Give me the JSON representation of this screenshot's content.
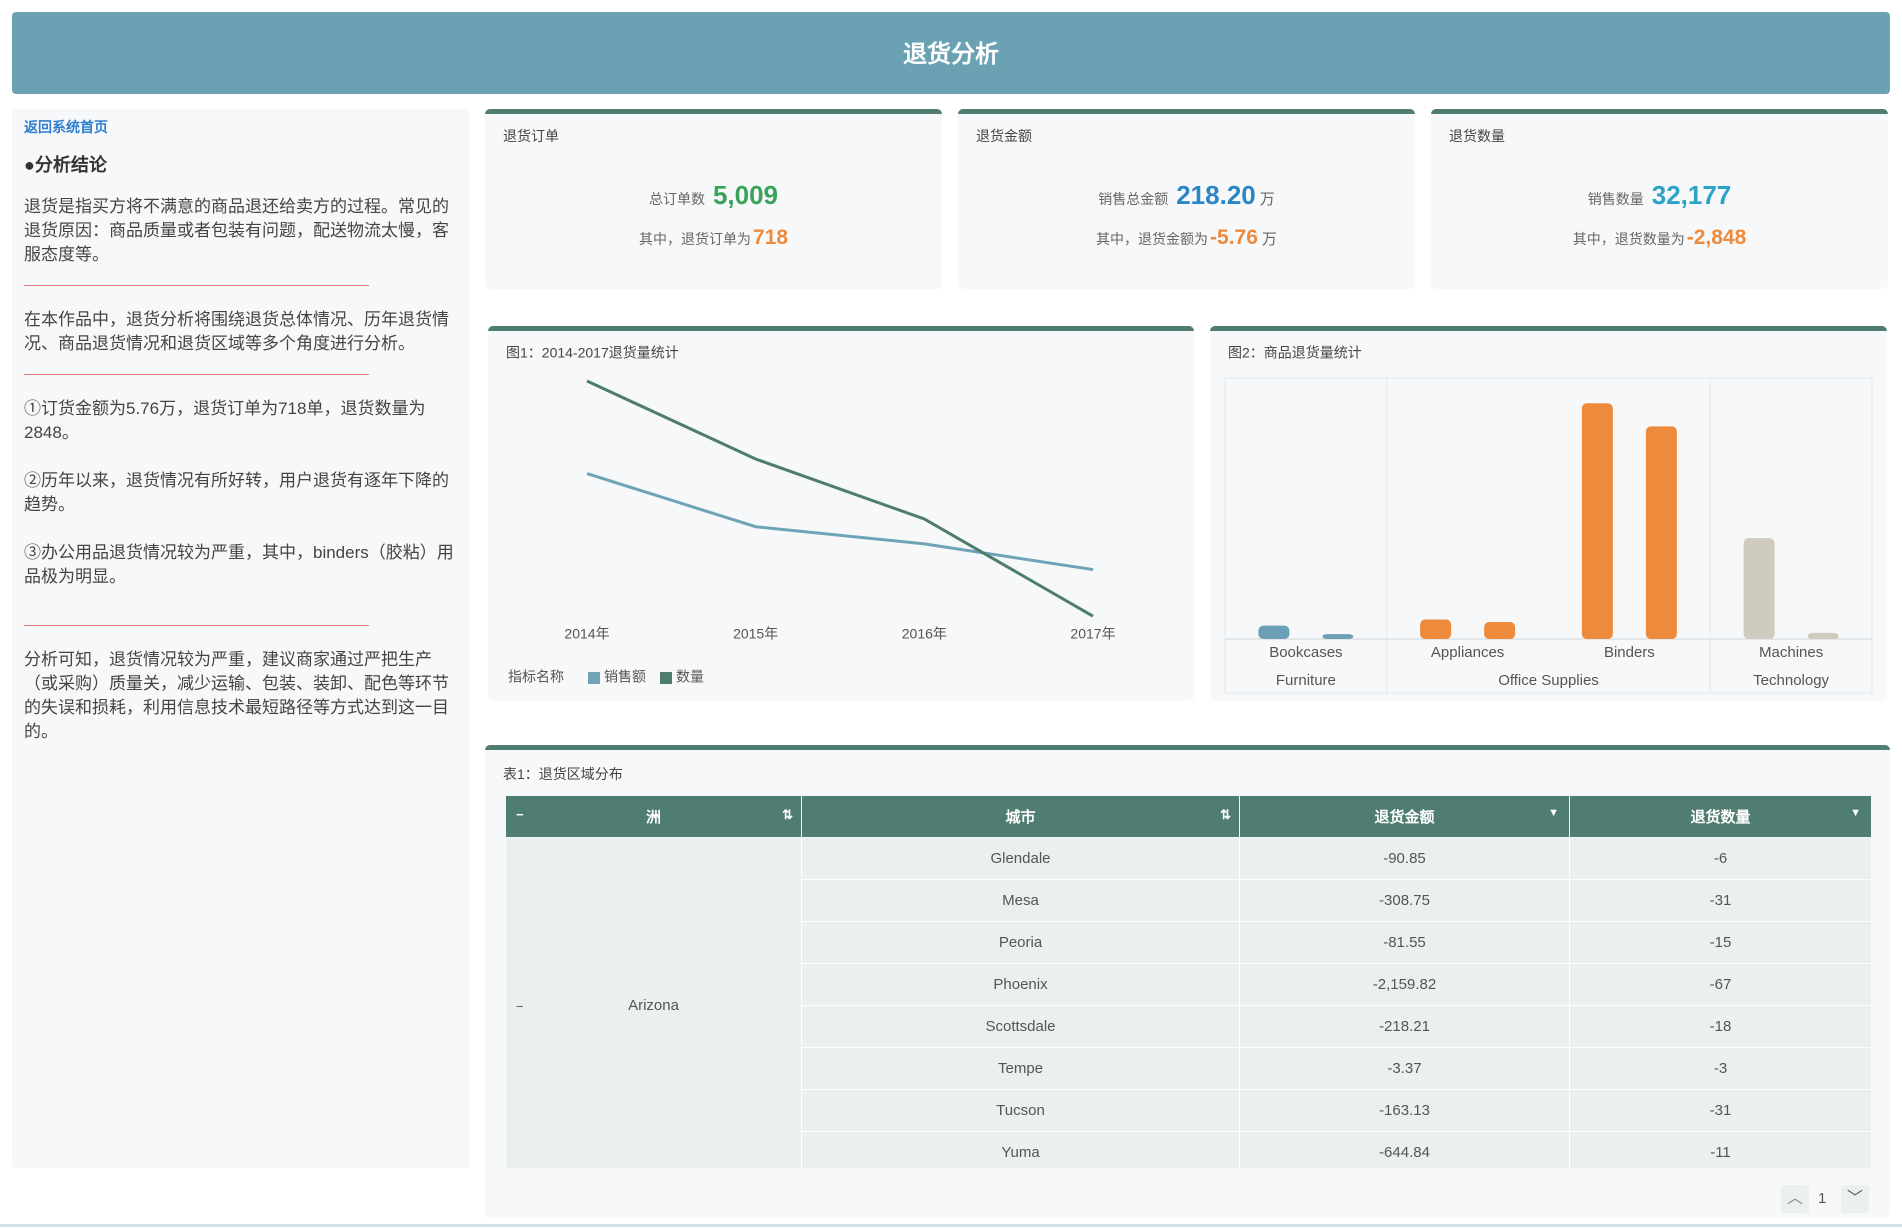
{
  "header": {
    "title": "退货分析"
  },
  "sidebar": {
    "link": "返回系统首页",
    "heading": "●分析结论",
    "paragraphs": [
      "退货是指买方将不满意的商品退还给卖方的过程。常见的退货原因：商品质量或者包装有问题，配送物流太慢，客服态度等。",
      "在本作品中，退货分析将围绕退货总体情况、历年退货情况、商品退货情况和退货区域等多个角度进行分析。",
      "①订货金额为5.76万，退货订单为718单，退货数量为2848。",
      "②历年以来，退货情况有所好转，用户退货有逐年下降的趋势。",
      "③办公用品退货情况较为严重，其中，binders（胶粘）用品极为明显。",
      "分析可知，退货情况较为严重，建议商家通过严把生产（或采购）质量关，减少运输、包装、装卸、配色等环节的失误和损耗，利用信息技术最短路径等方式达到这一目的。"
    ]
  },
  "kpis": [
    {
      "title": "退货订单",
      "label": "总订单数",
      "value": "5,009",
      "color": "#3aa35a",
      "sub_label": "其中，退货订单为",
      "sub_value": "718"
    },
    {
      "title": "退货金额",
      "label": "销售总金额",
      "value": "218.20",
      "unit": "万",
      "color": "#2b86c5",
      "sub_label": "其中，退货金额为",
      "sub_value": "-5.76",
      "sub_unit": "万"
    },
    {
      "title": "退货数量",
      "label": "销售数量",
      "value": "32,177",
      "color": "#2ba3c9",
      "sub_label": "其中，退货数量为",
      "sub_value": "-2,848"
    }
  ],
  "line_chart": {
    "type": "line",
    "title": "图1：2014-2017退货量统计",
    "legend_title": "指标名称",
    "categories": [
      "2014年",
      "2015年",
      "2016年",
      "2017年"
    ],
    "series": [
      {
        "name": "销售额",
        "color": "#6fa3b8",
        "axis": "y2",
        "values": [
          1.76,
          1.45,
          1.35,
          1.2
        ]
      },
      {
        "name": "数量",
        "color": "#4e7d6e",
        "values": [
          900,
          770,
          670,
          508
        ]
      }
    ],
    "ylim": [
      500,
      900
    ],
    "y2lim": [
      0.9,
      2.3
    ]
  },
  "bar_chart": {
    "type": "bar",
    "title": "图2：商品退货量统计",
    "ylim": [
      0,
      200
    ],
    "groups": [
      {
        "name": "Furniture",
        "color": "#6b9fb5",
        "items": [
          {
            "name": "Bookcases",
            "values": [
              11,
              4
            ]
          }
        ]
      },
      {
        "name": "Office Supplies",
        "color": "#ee8a3c",
        "items": [
          {
            "name": "Appliances",
            "values": [
              16,
              14
            ]
          },
          {
            "name": "Binders",
            "values": [
              194,
              175
            ]
          }
        ]
      },
      {
        "name": "Technology",
        "color": "#cfcbbf",
        "items": [
          {
            "name": "Machines",
            "values": [
              83,
              5
            ]
          }
        ]
      }
    ]
  },
  "table": {
    "title": "表1：退货区域分布",
    "columns": [
      "洲",
      "城市",
      "退货金额",
      "退货数量"
    ],
    "groups": [
      {
        "name": "Arizona",
        "rows": [
          [
            "Glendale",
            "-90.85",
            "-6"
          ],
          [
            "Mesa",
            "-308.75",
            "-31"
          ],
          [
            "Peoria",
            "-81.55",
            "-15"
          ],
          [
            "Phoenix",
            "-2,159.82",
            "-67"
          ],
          [
            "Scottsdale",
            "-218.21",
            "-18"
          ],
          [
            "Tempe",
            "-3.37",
            "-3"
          ],
          [
            "Tucson",
            "-163.13",
            "-31"
          ],
          [
            "Yuma",
            "-644.84",
            "-11"
          ]
        ]
      }
    ]
  },
  "pager": {
    "page": "1"
  }
}
